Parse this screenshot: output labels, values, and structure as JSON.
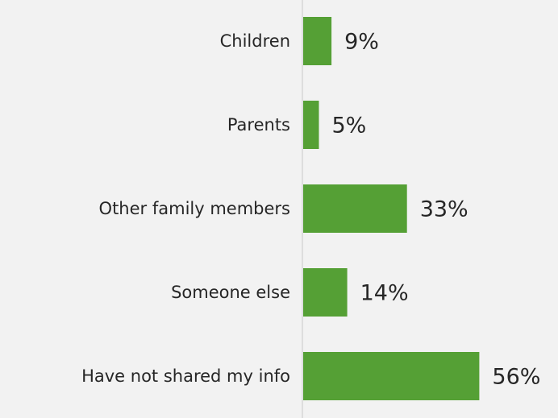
{
  "chart_data": {
    "type": "bar",
    "orientation": "horizontal",
    "title": "",
    "xlabel": "",
    "ylabel": "",
    "categories": [
      "Children",
      "Parents",
      "Other family members",
      "Someone else",
      "Have not shared my info"
    ],
    "values": [
      9,
      5,
      33,
      14,
      56
    ],
    "value_labels": [
      "9%",
      "5%",
      "33%",
      "14%",
      "56%"
    ],
    "unit": "%",
    "xlim": [
      0,
      60
    ],
    "grid": false,
    "legend": "none",
    "colors": {
      "bar": "#55a035",
      "background": "#f2f2f2",
      "axis": "#c8c8c8",
      "text": "#262626"
    }
  }
}
